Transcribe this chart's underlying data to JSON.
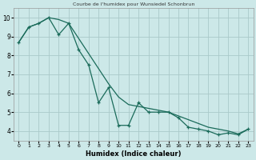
{
  "title": "Courbe de l'humidex pour Wunsiedel Schonbrun",
  "xlabel": "Humidex (Indice chaleur)",
  "background_color": "#cce8e8",
  "grid_color": "#aacaca",
  "line_color": "#1a6b5a",
  "xlim": [
    -0.5,
    23.5
  ],
  "ylim": [
    3.5,
    10.5
  ],
  "xticks": [
    0,
    1,
    2,
    3,
    4,
    5,
    6,
    7,
    8,
    9,
    10,
    11,
    12,
    13,
    14,
    15,
    16,
    17,
    18,
    19,
    20,
    21,
    22,
    23
  ],
  "yticks": [
    4,
    5,
    6,
    7,
    8,
    9,
    10
  ],
  "smooth_x": [
    0,
    1,
    2,
    3,
    4,
    5,
    6,
    7,
    8,
    9,
    10,
    11,
    12,
    13,
    14,
    15,
    16,
    17,
    18,
    19,
    20,
    21,
    22,
    23
  ],
  "smooth_y": [
    8.7,
    9.5,
    9.7,
    10.0,
    9.9,
    9.7,
    8.9,
    8.1,
    7.3,
    6.5,
    5.8,
    5.4,
    5.3,
    5.2,
    5.1,
    5.0,
    4.8,
    4.6,
    4.4,
    4.2,
    4.1,
    4.0,
    3.85,
    4.1
  ],
  "jagged_x": [
    0,
    1,
    2,
    3,
    4,
    5,
    6,
    7,
    8,
    9,
    10,
    11,
    12,
    13,
    14,
    15,
    16,
    17,
    18,
    19,
    20,
    21,
    22,
    23
  ],
  "jagged_y": [
    8.7,
    9.5,
    9.7,
    10.0,
    9.1,
    9.7,
    8.3,
    7.5,
    5.5,
    6.3,
    4.3,
    4.3,
    5.5,
    5.0,
    5.0,
    5.0,
    4.7,
    4.2,
    4.1,
    4.0,
    3.8,
    3.9,
    3.8,
    4.1
  ]
}
